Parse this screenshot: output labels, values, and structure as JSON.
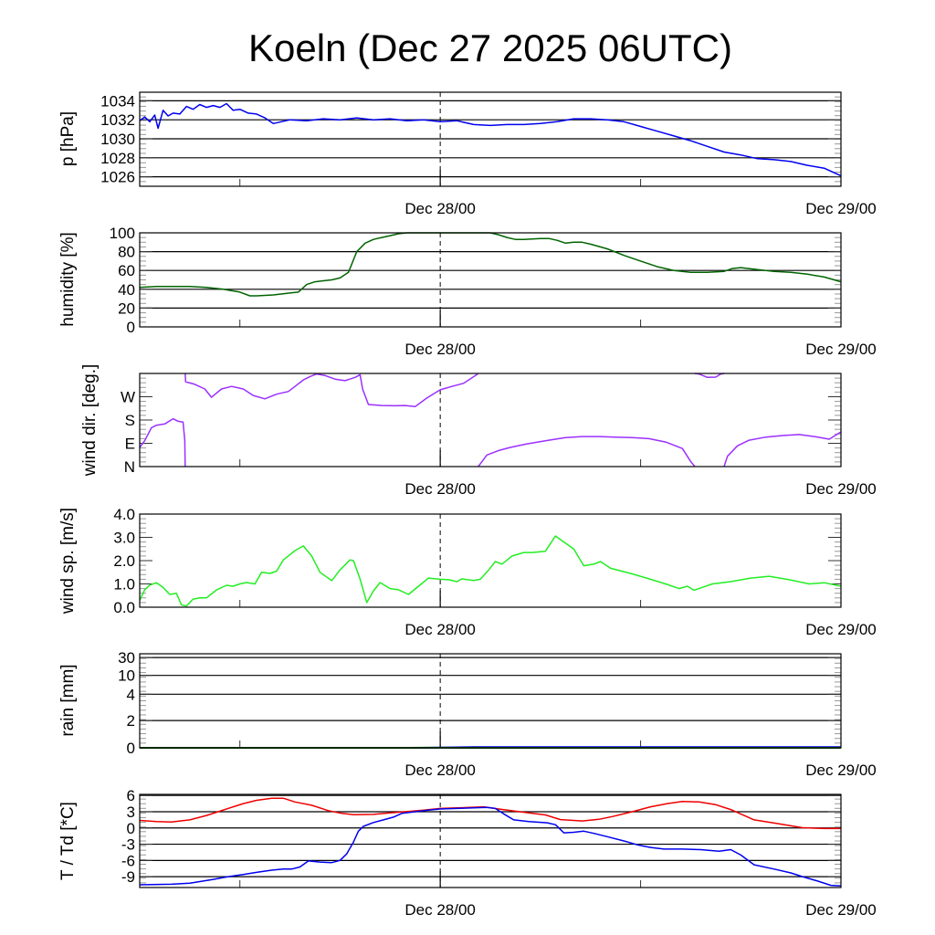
{
  "title": "Koeln (Dec 27 2025 06UTC)",
  "chart_data": {
    "type": "line",
    "title": "Koeln (Dec 27 2025 06UTC)",
    "x_unit": "hours since Dec 27 2025 06UTC",
    "xlim": [
      0,
      42
    ],
    "x_major_ticks": [
      {
        "h": 18,
        "label": "Dec 28/00"
      },
      {
        "h": 42,
        "label": "Dec 29/00"
      }
    ],
    "x_minor_ticks": [
      6,
      30
    ],
    "marker_line": {
      "h": 18,
      "style": "dashed"
    },
    "panels": [
      {
        "id": "pressure",
        "ylabel": "p [hPa]",
        "ylim": [
          1025.0,
          1034.9
        ],
        "yticks": [
          1026,
          1028,
          1030,
          1032,
          1034
        ],
        "ytick_labels": [
          "1026",
          "1028",
          "1030",
          "1032",
          "1034"
        ],
        "grid": true,
        "series": [
          {
            "name": "pressure",
            "color": "#0000ee",
            "x": [
              0,
              0.3,
              0.6,
              0.9,
              1.1,
              1.4,
              1.7,
              2,
              2.4,
              2.8,
              3.2,
              3.6,
              4,
              4.4,
              4.8,
              5.2,
              5.6,
              6,
              6.5,
              7,
              7.5,
              8,
              9,
              10,
              11,
              12,
              13,
              14,
              15,
              16,
              17,
              18,
              19,
              20,
              21,
              22,
              23,
              24,
              25,
              26,
              27,
              28,
              29,
              30,
              31,
              32,
              33,
              34,
              35,
              36,
              37,
              38,
              39,
              40,
              41,
              42
            ],
            "y": [
              1031.9,
              1032.3,
              1031.8,
              1032.5,
              1031.1,
              1033.0,
              1032.4,
              1032.7,
              1032.6,
              1033.4,
              1033.1,
              1033.6,
              1033.3,
              1033.5,
              1033.3,
              1033.7,
              1033.0,
              1033.1,
              1032.7,
              1032.6,
              1032.2,
              1031.6,
              1032.0,
              1031.9,
              1032.1,
              1032.0,
              1032.2,
              1032.0,
              1032.1,
              1031.9,
              1032.0,
              1031.8,
              1031.9,
              1031.5,
              1031.4,
              1031.5,
              1031.5,
              1031.6,
              1031.8,
              1032.1,
              1032.1,
              1032.0,
              1031.8,
              1031.3,
              1030.8,
              1030.3,
              1029.8,
              1029.2,
              1028.6,
              1028.3,
              1027.9,
              1027.8,
              1027.6,
              1027.2,
              1026.9,
              1026.1
            ]
          }
        ]
      },
      {
        "id": "humidity",
        "ylabel": "humidity [%]",
        "ylim": [
          0,
          100
        ],
        "yticks": [
          0,
          20,
          40,
          60,
          80,
          100
        ],
        "ytick_labels": [
          "0",
          "20",
          "40",
          "60",
          "80",
          "100"
        ],
        "grid": true,
        "series": [
          {
            "name": "humidity",
            "color": "#006400",
            "x": [
              0,
              1,
              2,
              3,
              4,
              5,
              6,
              6.6,
              7,
              8,
              9,
              9.5,
              10,
              10.5,
              11,
              11.5,
              12,
              12.5,
              13,
              13.5,
              14,
              14.5,
              15,
              15.5,
              16,
              17,
              18,
              19,
              20,
              21,
              21.5,
              22,
              22.5,
              23,
              24,
              24.5,
              25,
              25.5,
              26,
              26.5,
              27,
              28,
              29,
              30,
              31,
              32,
              33,
              34,
              35,
              35.5,
              36,
              37,
              38,
              39,
              40,
              41,
              42
            ],
            "y": [
              42,
              43,
              43,
              43,
              42,
              40,
              37,
              33,
              33,
              34,
              36,
              37,
              45,
              48,
              49,
              50,
              52,
              58,
              80,
              89,
              93,
              95,
              97,
              99,
              100,
              100,
              100,
              100,
              100,
              100,
              98,
              95,
              93,
              93,
              94,
              94,
              92,
              89,
              90,
              90,
              88,
              83,
              76,
              70,
              64,
              60,
              58,
              58,
              59,
              62,
              63,
              61,
              59,
              58,
              56,
              53,
              48
            ]
          }
        ]
      },
      {
        "id": "wind_dir",
        "ylabel": "wind dir. [deg.]",
        "ylim": [
          0,
          360
        ],
        "yticks": [
          0,
          90,
          180,
          270
        ],
        "ytick_labels": [
          "N",
          "E",
          "S",
          "W"
        ],
        "minor_yticks": [
          45,
          135,
          225,
          315
        ],
        "grid": false,
        "wraparound": true,
        "series": [
          {
            "name": "wind direction",
            "color": "#9b30ff",
            "x": [
              0,
              0.3,
              0.7,
              1,
              1.5,
              2,
              2.3,
              2.6,
              2.7,
              2.75,
              3.3,
              3.9,
              4.3,
              4.9,
              5.5,
              6.2,
              6.8,
              7.5,
              8.2,
              8.9,
              9.4,
              9.8,
              10.2,
              10.6,
              11.1,
              11.7,
              12.3,
              12.9,
              13.2,
              13.35,
              13.7,
              14.5,
              15.3,
              15.9,
              16.5,
              17.2,
              18,
              18.7,
              19.4,
              20.2,
              20.3,
              20.8,
              21.5,
              22.2,
              23.2,
              24.5,
              25.5,
              26.5,
              27.5,
              28.5,
              29.5,
              30.5,
              31.5,
              32.5,
              33,
              33.5,
              34,
              34.5,
              34.8,
              35.2,
              35.8,
              36.5,
              37.5,
              38.5,
              39.5,
              40.5,
              41.3,
              42
            ],
            "y": [
              74,
              100,
              150,
              160,
              165,
              185,
              175,
              172,
              100,
              328,
              318,
              300,
              268,
              300,
              310,
              300,
              275,
              262,
              280,
              290,
              315,
              335,
              348,
              358,
              352,
              338,
              332,
              345,
              355,
              300,
              240,
              236,
              235,
              236,
              232,
              265,
              297,
              310,
              322,
              356,
              2,
              45,
              62,
              74,
              88,
              102,
              112,
              116,
              116,
              114,
              112,
              108,
              95,
              70,
              20,
              358,
              345,
              346,
              358,
              40,
              80,
              102,
              114,
              120,
              124,
              115,
              106,
              134
            ]
          }
        ]
      },
      {
        "id": "wind_speed",
        "ylabel": "wind sp. [m/s]",
        "ylim": [
          0,
          4.0
        ],
        "yticks": [
          0.0,
          1.0,
          2.0,
          3.0,
          4.0
        ],
        "ytick_labels": [
          "0.0",
          "1.0",
          "2.0",
          "3.0",
          "4.0"
        ],
        "grid": false,
        "series": [
          {
            "name": "wind speed",
            "color": "#22ee22",
            "x": [
              0,
              0.3,
              0.6,
              1.0,
              1.4,
              1.8,
              2.2,
              2.5,
              2.8,
              3.2,
              3.6,
              4.0,
              4.6,
              5.2,
              5.6,
              6.0,
              6.4,
              6.9,
              7.3,
              7.8,
              8.2,
              8.6,
              8.9,
              9.3,
              9.8,
              10.3,
              10.8,
              11.5,
              12.0,
              12.6,
              12.8,
              13.2,
              13.6,
              14.0,
              14.4,
              15.0,
              15.5,
              16.1,
              16.7,
              17.3,
              18,
              18.5,
              19,
              19.3,
              20,
              20.4,
              20.9,
              21.3,
              21.7,
              22.3,
              23,
              23.5,
              24.3,
              24.9,
              25.5,
              26.0,
              26.6,
              27.2,
              27.6,
              28.2,
              29.4,
              30.6,
              31.5,
              32.3,
              32.8,
              33.2,
              34.3,
              35.4,
              36.6,
              37.7,
              38.9,
              40.1,
              41,
              42
            ],
            "y": [
              0.3,
              0.75,
              0.95,
              1.05,
              0.85,
              0.55,
              0.6,
              0.1,
              0.05,
              0.35,
              0.4,
              0.4,
              0.74,
              0.94,
              0.9,
              1.0,
              1.06,
              1.0,
              1.5,
              1.45,
              1.55,
              2.03,
              2.2,
              2.43,
              2.63,
              2.2,
              1.5,
              1.14,
              1.6,
              2.03,
              2.0,
              1.2,
              0.2,
              0.7,
              1.06,
              0.8,
              0.75,
              0.55,
              0.9,
              1.25,
              1.2,
              1.18,
              1.1,
              1.22,
              1.15,
              1.2,
              1.6,
              1.96,
              1.85,
              2.2,
              2.35,
              2.35,
              2.4,
              3.06,
              2.75,
              2.5,
              1.78,
              1.85,
              1.96,
              1.67,
              1.45,
              1.2,
              1.0,
              0.8,
              0.9,
              0.73,
              1.0,
              1.1,
              1.25,
              1.33,
              1.18,
              1.0,
              1.05,
              0.9
            ]
          }
        ]
      },
      {
        "id": "rain",
        "ylabel": "rain [mm]",
        "scale": "nonlinear",
        "ytick_values": [
          0,
          2,
          4,
          10,
          30
        ],
        "ytick_labels": [
          "0",
          "2",
          "4",
          "10",
          "30"
        ],
        "grid": true,
        "series": [
          {
            "name": "rain (accumulated)",
            "color": "#0000ee",
            "x": [
              0,
              17,
              18,
              20,
              25,
              30,
              35,
              42
            ],
            "y": [
              0,
              0,
              0.02,
              0.05,
              0.05,
              0.05,
              0.05,
              0.05
            ]
          },
          {
            "name": "rain (hourly)",
            "color": "#006400",
            "x": [
              0,
              16,
              17,
              18,
              19,
              42
            ],
            "y": [
              0,
              0,
              0.01,
              0.01,
              0,
              0
            ]
          }
        ]
      },
      {
        "id": "temperature",
        "ylabel": "T / Td [*C]",
        "ylim": [
          -11,
          6.2
        ],
        "yticks": [
          -9,
          -6,
          -3,
          0,
          3,
          6
        ],
        "ytick_labels": [
          "-9",
          "-6",
          "-3",
          "0",
          "3",
          "6"
        ],
        "grid": true,
        "series": [
          {
            "name": "T",
            "color": "#ee0000",
            "x": [
              0,
              1,
              1.9,
              3,
              4,
              4.8,
              5.5,
              6.2,
              7,
              7.9,
              8.6,
              9.3,
              10.3,
              11.3,
              12.1,
              12.8,
              14,
              15,
              15.9,
              17,
              18,
              19,
              20.6,
              21.5,
              22.5,
              23.3,
              24.3,
              25.2,
              26.5,
              27.5,
              28.3,
              29.5,
              30.6,
              31.6,
              32.5,
              33.5,
              34.5,
              35.4,
              36.2,
              36.8,
              38,
              39,
              39.7,
              41,
              42
            ],
            "y": [
              1.4,
              1.2,
              1.1,
              1.5,
              2.3,
              3.1,
              3.8,
              4.5,
              5.1,
              5.5,
              5.5,
              4.8,
              4.2,
              3.2,
              2.7,
              2.45,
              2.5,
              2.8,
              3.0,
              3.3,
              3.6,
              3.7,
              3.9,
              3.5,
              3.1,
              2.8,
              2.4,
              1.55,
              1.3,
              1.6,
              2.1,
              3.0,
              3.9,
              4.5,
              4.9,
              4.8,
              4.3,
              3.4,
              2.3,
              1.5,
              0.9,
              0.4,
              0.05,
              -0.1,
              -0.1
            ]
          },
          {
            "name": "Td",
            "color": "#0000ee",
            "x": [
              0,
              1.9,
              3,
              4.4,
              5.3,
              6.2,
              7,
              7.9,
              8.6,
              9.1,
              9.6,
              10.1,
              10.8,
              11.5,
              12,
              12.4,
              12.8,
              13.1,
              13.4,
              14,
              14.6,
              15.2,
              15.7,
              16.5,
              17.3,
              18,
              19,
              20,
              20.8,
              21.3,
              21.8,
              22.4,
              23.3,
              24.4,
              24.9,
              25.4,
              26,
              26.6,
              27.2,
              28,
              29,
              29.9,
              30.6,
              31.4,
              32.5,
              33.6,
              34.7,
              35.4,
              36,
              36.8,
              38,
              39,
              39.7,
              40.6,
              41.4,
              42
            ],
            "y": [
              -10.5,
              -10.4,
              -10.2,
              -9.5,
              -9.0,
              -8.6,
              -8.2,
              -7.8,
              -7.6,
              -7.6,
              -7.2,
              -6.1,
              -6.3,
              -6.4,
              -6.0,
              -4.8,
              -2.6,
              -0.6,
              0.3,
              1.0,
              1.5,
              2.0,
              2.7,
              3.0,
              3.3,
              3.5,
              3.6,
              3.7,
              3.8,
              3.6,
              2.6,
              1.5,
              1.2,
              0.95,
              0.6,
              -0.9,
              -0.8,
              -0.6,
              -1.0,
              -1.6,
              -2.4,
              -3.2,
              -3.6,
              -3.9,
              -3.9,
              -4.0,
              -4.3,
              -4.0,
              -5.0,
              -6.8,
              -7.6,
              -8.3,
              -9.0,
              -9.8,
              -10.6,
              -10.7
            ]
          }
        ]
      }
    ]
  }
}
